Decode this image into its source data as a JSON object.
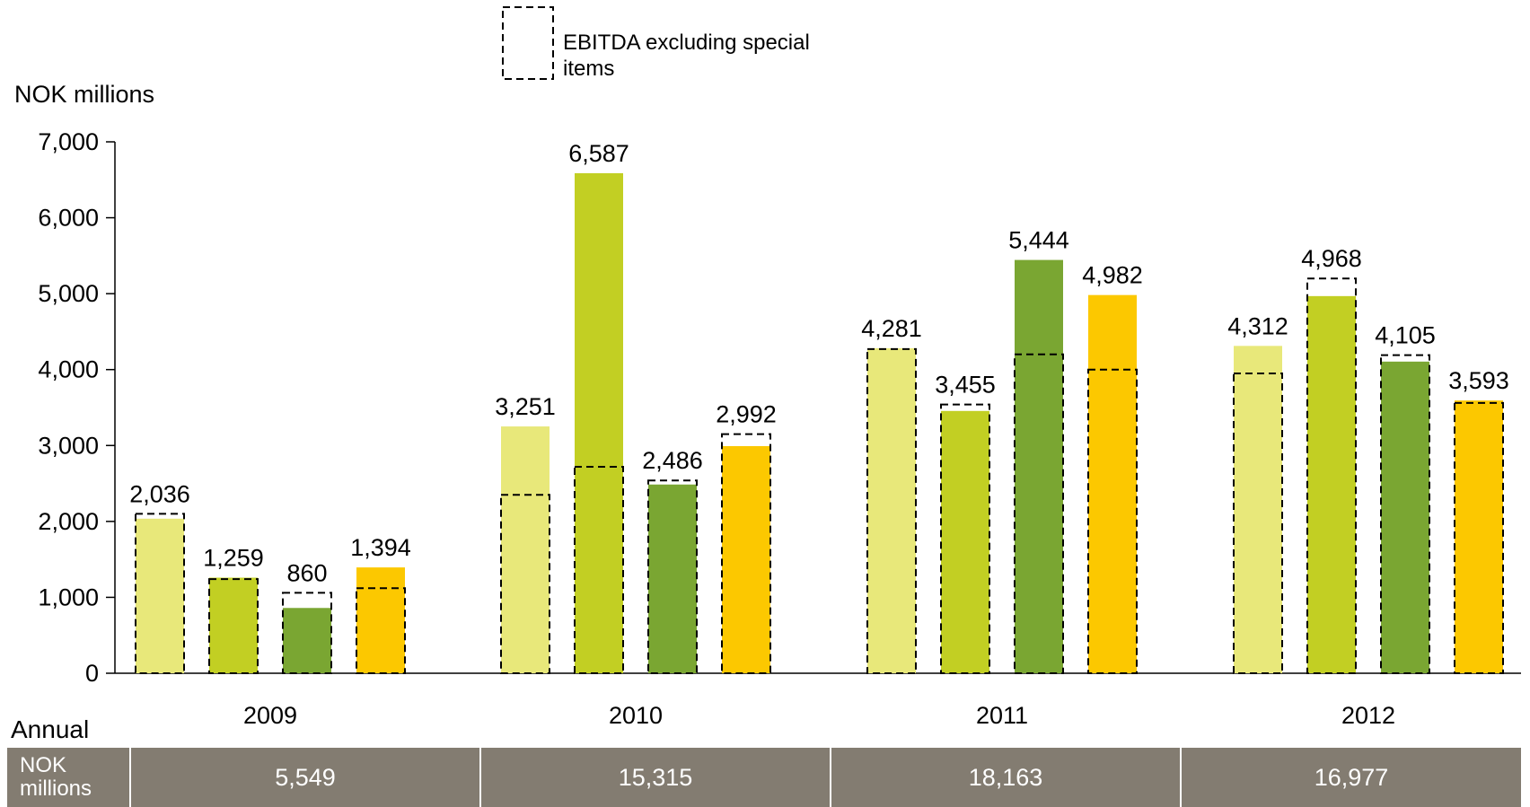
{
  "chart_data": {
    "type": "bar",
    "ylabel": "NOK millions",
    "ylim": [
      0,
      7000
    ],
    "yticks": [
      0,
      1000,
      2000,
      3000,
      4000,
      5000,
      6000,
      7000
    ],
    "ytick_labels": [
      "0",
      "1,000",
      "2,000",
      "3,000",
      "4,000",
      "5,000",
      "6,000",
      "7,000"
    ],
    "categories": [
      "2009",
      "2010",
      "2011",
      "2012"
    ],
    "bars_per_group": 4,
    "bar_colors": [
      "#e8e87a",
      "#c2cf23",
      "#7aa632",
      "#fcc800"
    ],
    "values": [
      [
        2036,
        1259,
        860,
        1394
      ],
      [
        3251,
        6587,
        2486,
        2992
      ],
      [
        4281,
        3455,
        5444,
        4982
      ],
      [
        4312,
        4968,
        4105,
        3593
      ]
    ],
    "value_labels": [
      [
        "2,036",
        "1,259",
        "860",
        "1,394"
      ],
      [
        "3,251",
        "6,587",
        "2,486",
        "2,992"
      ],
      [
        "4,281",
        "3,455",
        "5,444",
        "4,982"
      ],
      [
        "4,312",
        "4,968",
        "4,105",
        "3,593"
      ]
    ],
    "ebitda_excl_special": [
      [
        2100,
        1240,
        1060,
        1120
      ],
      [
        2350,
        2720,
        2540,
        3150
      ],
      [
        4270,
        3540,
        4200,
        4000
      ],
      [
        3950,
        5200,
        4190,
        3560
      ]
    ],
    "legend": {
      "entry": "EBITDA excluding special items",
      "placement": "top-center"
    },
    "grid": false
  },
  "annual": {
    "label": "Annual",
    "row_header": [
      "NOK",
      "millions"
    ],
    "values": [
      "5,549",
      "15,315",
      "18,163",
      "16,977"
    ]
  }
}
